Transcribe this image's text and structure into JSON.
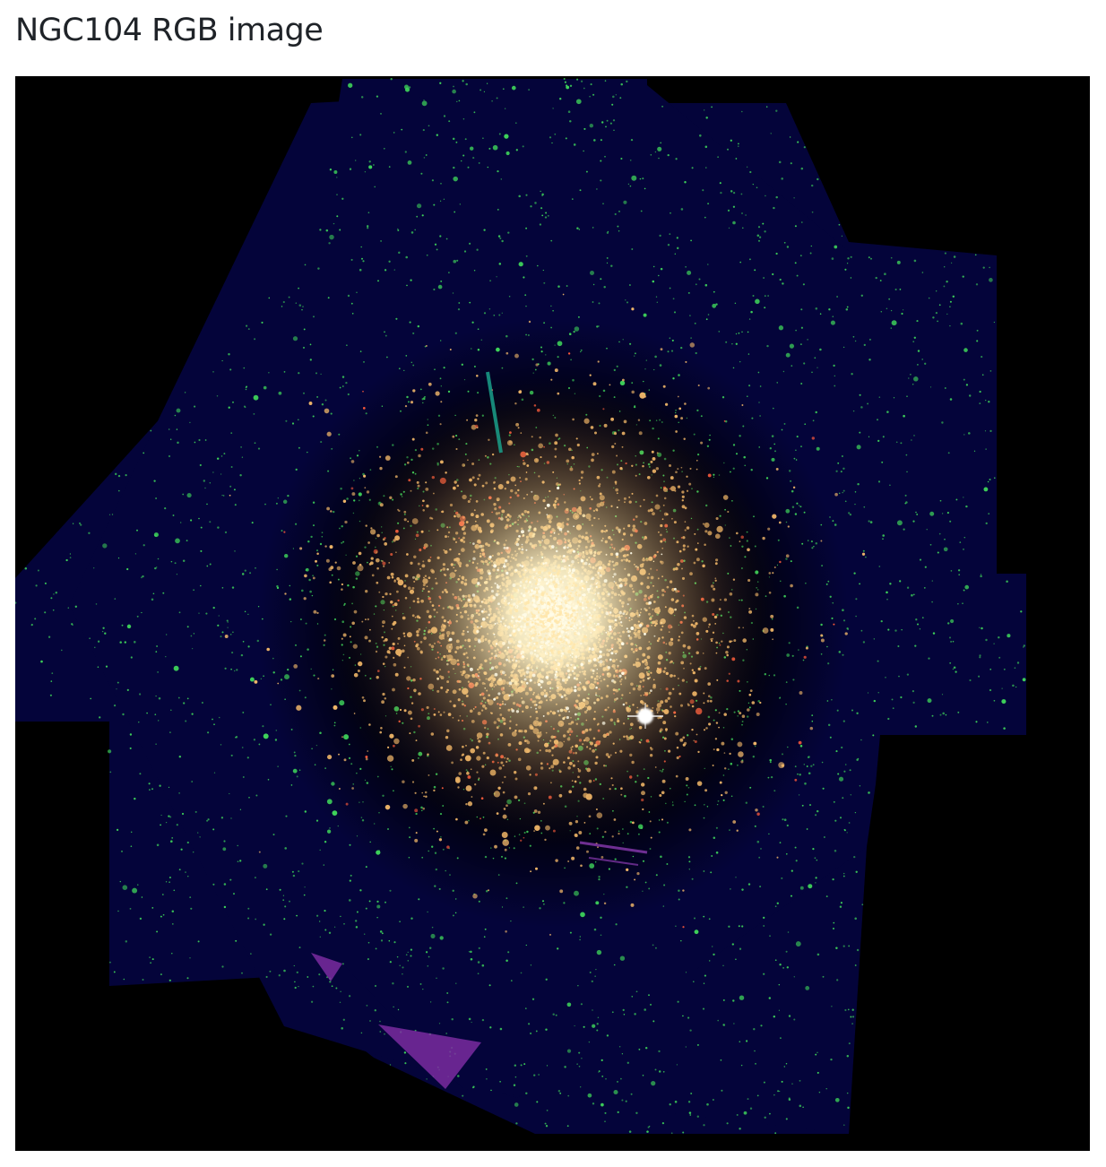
{
  "page": {
    "title": "NGC104 RGB image"
  },
  "image": {
    "subject": "NGC104",
    "color_mode": "RGB",
    "colors": {
      "background": "#000000",
      "footprint": "#04043a",
      "field_stars": "#3ed35a",
      "core_glow": "#fff6d6",
      "cluster_stars": "#f2b86a",
      "red_stars": "#ff5a3c",
      "artifact_purple": "#7a2ba0",
      "artifact_teal": "#1aa08a"
    }
  }
}
